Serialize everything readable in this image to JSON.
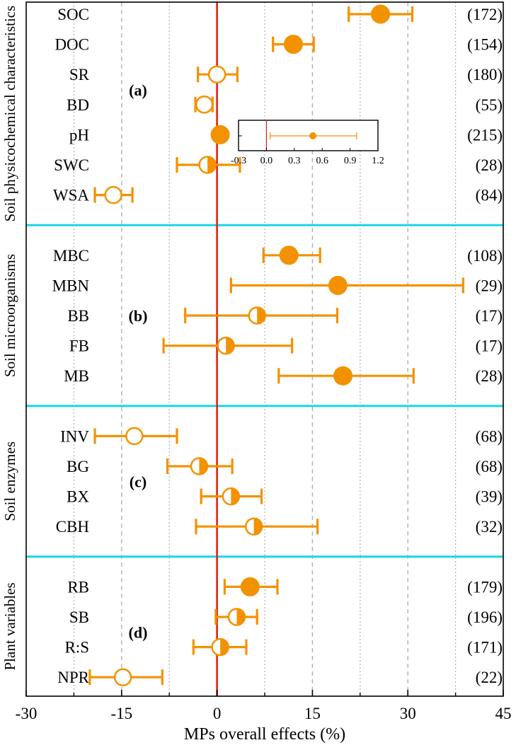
{
  "chart_data": {
    "type": "forest",
    "xlabel": "MPs overall effects (%)",
    "xlim": [
      -30,
      45
    ],
    "xticks": [
      -30,
      -15,
      0,
      15,
      30,
      45
    ],
    "colors": {
      "point": "#F39200",
      "zero_line": "#E0201B",
      "separator": "#19D7E6",
      "grid": "#B0B0B0"
    },
    "groups": [
      {
        "label": "Soil physicochemical characteristics",
        "panel": "(a)",
        "rows": [
          {
            "name": "SOC",
            "mean": 25.7,
            "lo": 20.7,
            "hi": 30.7,
            "n": "(172)",
            "fill": "full"
          },
          {
            "name": "DOC",
            "mean": 12.0,
            "lo": 8.8,
            "hi": 15.2,
            "n": "(154)",
            "fill": "full"
          },
          {
            "name": "SR",
            "mean": 0.0,
            "lo": -3.0,
            "hi": 3.2,
            "n": "(180)",
            "fill": "none"
          },
          {
            "name": "BD",
            "mean": -2.0,
            "lo": -3.4,
            "hi": -0.7,
            "n": "(55)",
            "fill": "none"
          },
          {
            "name": "pH",
            "mean": 0.5,
            "lo": 0.0,
            "hi": 1.0,
            "n": "(215)",
            "fill": "full"
          },
          {
            "name": "SWC",
            "mean": -1.5,
            "lo": -6.3,
            "hi": 3.6,
            "n": "(28)",
            "fill": "half"
          },
          {
            "name": "WSA",
            "mean": -16.3,
            "lo": -19.2,
            "hi": -13.3,
            "n": "(84)",
            "fill": "none"
          }
        ]
      },
      {
        "label": "Soil microorganisms",
        "panel": "(b)",
        "rows": [
          {
            "name": "MBC",
            "mean": 11.3,
            "lo": 7.3,
            "hi": 16.2,
            "n": "(108)",
            "fill": "full"
          },
          {
            "name": "MBN",
            "mean": 19.0,
            "lo": 2.2,
            "hi": 38.7,
            "n": "(29)",
            "fill": "full"
          },
          {
            "name": "BB",
            "mean": 6.3,
            "lo": -5.0,
            "hi": 18.9,
            "n": "(17)",
            "fill": "half"
          },
          {
            "name": "FB",
            "mean": 1.4,
            "lo": -8.4,
            "hi": 11.8,
            "n": "(17)",
            "fill": "half"
          },
          {
            "name": "MB",
            "mean": 19.8,
            "lo": 9.7,
            "hi": 30.9,
            "n": "(28)",
            "fill": "full"
          }
        ]
      },
      {
        "label": "Soil enzymes",
        "panel": "(c)",
        "rows": [
          {
            "name": "INV",
            "mean": -13.0,
            "lo": -19.2,
            "hi": -6.3,
            "n": "(68)",
            "fill": "none"
          },
          {
            "name": "BG",
            "mean": -2.8,
            "lo": -7.8,
            "hi": 2.4,
            "n": "(68)",
            "fill": "half"
          },
          {
            "name": "BX",
            "mean": 2.2,
            "lo": -2.5,
            "hi": 7.0,
            "n": "(39)",
            "fill": "half"
          },
          {
            "name": "CBH",
            "mean": 5.8,
            "lo": -3.3,
            "hi": 15.8,
            "n": "(32)",
            "fill": "half"
          }
        ]
      },
      {
        "label": "Plant variables",
        "panel": "(d)",
        "rows": [
          {
            "name": "RB",
            "mean": 5.2,
            "lo": 1.2,
            "hi": 9.5,
            "n": "(179)",
            "fill": "full"
          },
          {
            "name": "SB",
            "mean": 3.1,
            "lo": -0.2,
            "hi": 6.3,
            "n": "(196)",
            "fill": "half"
          },
          {
            "name": "R:S",
            "mean": 0.5,
            "lo": -3.7,
            "hi": 4.6,
            "n": "(171)",
            "fill": "half"
          },
          {
            "name": "NPR",
            "mean": -14.8,
            "lo": -20.0,
            "hi": -8.6,
            "n": "(22)",
            "fill": "none"
          }
        ]
      }
    ],
    "inset": {
      "xlim": [
        -0.3,
        1.2
      ],
      "xticks": [
        "-0.3",
        "0.0",
        "0.3",
        "0.6",
        "0.9",
        "1.2"
      ],
      "point": {
        "mean": 0.5,
        "lo": 0.04,
        "hi": 0.97
      }
    }
  }
}
